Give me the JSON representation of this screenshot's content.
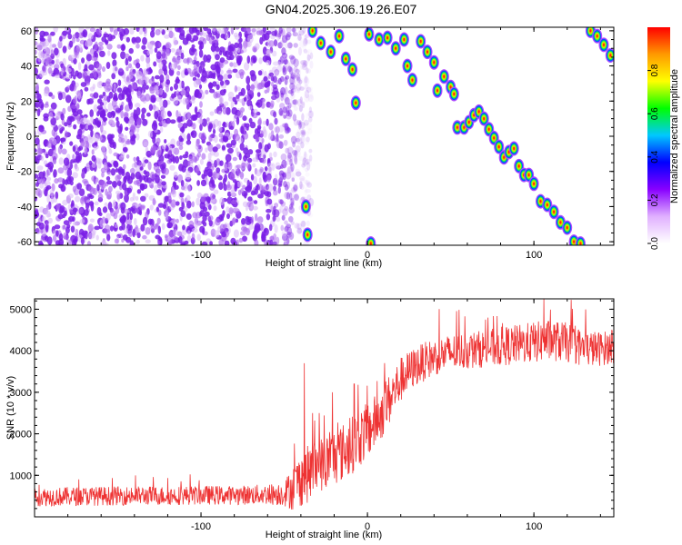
{
  "title": "GN04.2025.306.19.26.E07",
  "chart_data": [
    {
      "type": "heatmap",
      "xlabel": "Height of straight line (km)",
      "ylabel": "Frequency (Hz)",
      "xlim": [
        -200,
        148
      ],
      "ylim": [
        -62,
        62
      ],
      "xticks": [
        -100,
        0,
        100
      ],
      "xtick_labels": [
        "-100",
        "0",
        "100"
      ],
      "yticks": [
        -60,
        -40,
        -20,
        0,
        20,
        40,
        60
      ],
      "ytick_labels": [
        "-60",
        "-40",
        "-20",
        "0",
        "20",
        "40",
        "60"
      ],
      "noise_region": {
        "x_from": -200,
        "x_to": -38
      },
      "ridge_points": [
        {
          "x": -37,
          "y": -40
        },
        {
          "x": -36,
          "y": -56
        },
        {
          "x": -33,
          "y": 60
        },
        {
          "x": -28,
          "y": 53
        },
        {
          "x": -22,
          "y": 48
        },
        {
          "x": -17,
          "y": 57
        },
        {
          "x": -13,
          "y": 44
        },
        {
          "x": -9,
          "y": 38
        },
        {
          "x": -7,
          "y": 19
        },
        {
          "x": 1,
          "y": 58
        },
        {
          "x": 2,
          "y": -61
        },
        {
          "x": 7,
          "y": 55
        },
        {
          "x": 12,
          "y": 56
        },
        {
          "x": 17,
          "y": 50
        },
        {
          "x": 22,
          "y": 55
        },
        {
          "x": 24,
          "y": 40
        },
        {
          "x": 27,
          "y": 32
        },
        {
          "x": 32,
          "y": 54
        },
        {
          "x": 36,
          "y": 48
        },
        {
          "x": 40,
          "y": 42
        },
        {
          "x": 42,
          "y": 26
        },
        {
          "x": 46,
          "y": 34
        },
        {
          "x": 50,
          "y": 28
        },
        {
          "x": 52,
          "y": 24
        },
        {
          "x": 54,
          "y": 5
        },
        {
          "x": 58,
          "y": 5
        },
        {
          "x": 61,
          "y": 8
        },
        {
          "x": 64,
          "y": 12
        },
        {
          "x": 67,
          "y": 14
        },
        {
          "x": 70,
          "y": 10
        },
        {
          "x": 73,
          "y": 4
        },
        {
          "x": 76,
          "y": -1
        },
        {
          "x": 79,
          "y": -6
        },
        {
          "x": 82,
          "y": -12
        },
        {
          "x": 85,
          "y": -9
        },
        {
          "x": 88,
          "y": -7
        },
        {
          "x": 91,
          "y": -17
        },
        {
          "x": 94,
          "y": -22
        },
        {
          "x": 97,
          "y": -22
        },
        {
          "x": 100,
          "y": -27
        },
        {
          "x": 104,
          "y": -37
        },
        {
          "x": 108,
          "y": -39
        },
        {
          "x": 112,
          "y": -43
        },
        {
          "x": 116,
          "y": -49
        },
        {
          "x": 120,
          "y": -52
        },
        {
          "x": 124,
          "y": -60
        },
        {
          "x": 128,
          "y": -61
        },
        {
          "x": 134,
          "y": 60
        },
        {
          "x": 138,
          "y": 57
        },
        {
          "x": 142,
          "y": 52
        },
        {
          "x": 146,
          "y": 46
        }
      ]
    },
    {
      "type": "colorbar",
      "label": "Normalized spectral amplitude",
      "range": [
        0,
        1
      ],
      "ticks": [
        0,
        0.2,
        0.4,
        0.6,
        0.8
      ],
      "tick_labels": [
        "0.0",
        "0.2",
        "0.4",
        "0.6",
        "0.8"
      ],
      "colors": [
        "#ffffff",
        "#e0b0ff",
        "#8800ff",
        "#0000ff",
        "#00c8ff",
        "#00ff00",
        "#ffff00",
        "#ff9900",
        "#ff0000"
      ]
    },
    {
      "type": "line",
      "xlabel": "Height of straight line (km)",
      "ylabel": "SNR (10 * v/v)",
      "xlim": [
        -200,
        148
      ],
      "ylim": [
        0,
        5250
      ],
      "xticks": [
        -100,
        0,
        100
      ],
      "xtick_labels": [
        "-100",
        "0",
        "100"
      ],
      "yticks": [
        1000,
        2000,
        3000,
        4000,
        5000
      ],
      "ytick_labels": [
        "1000",
        "2000",
        "3000",
        "4000",
        "5000"
      ],
      "color": "#ee3333",
      "x": [
        -200,
        -180,
        -160,
        -140,
        -120,
        -100,
        -80,
        -60,
        -50,
        -45,
        -40,
        -35,
        -30,
        -25,
        -20,
        -15,
        -10,
        -5,
        0,
        5,
        10,
        15,
        20,
        25,
        30,
        40,
        50,
        60,
        70,
        80,
        90,
        100,
        110,
        120,
        130,
        140,
        148
      ],
      "y": [
        480,
        490,
        500,
        510,
        510,
        520,
        520,
        540,
        560,
        700,
        900,
        1050,
        1200,
        1300,
        1450,
        1550,
        1700,
        1900,
        2050,
        2300,
        2600,
        2950,
        3300,
        3500,
        3650,
        3850,
        3950,
        4000,
        4050,
        4100,
        4150,
        4200,
        4250,
        4200,
        4050,
        4050,
        4100
      ],
      "spread": [
        230,
        230,
        230,
        230,
        230,
        230,
        230,
        250,
        300,
        550,
        650,
        700,
        700,
        700,
        700,
        700,
        700,
        700,
        700,
        650,
        650,
        600,
        550,
        500,
        480,
        450,
        450,
        450,
        450,
        480,
        480,
        500,
        500,
        480,
        450,
        420,
        400
      ],
      "spikes": [
        {
          "x": -38,
          "y": 3700
        },
        {
          "x": -33,
          "y": 2500
        },
        {
          "x": -29,
          "y": 2500
        },
        {
          "x": -21,
          "y": 3000
        },
        {
          "x": -8,
          "y": 3200
        },
        {
          "x": 106,
          "y": 5250
        }
      ]
    }
  ]
}
